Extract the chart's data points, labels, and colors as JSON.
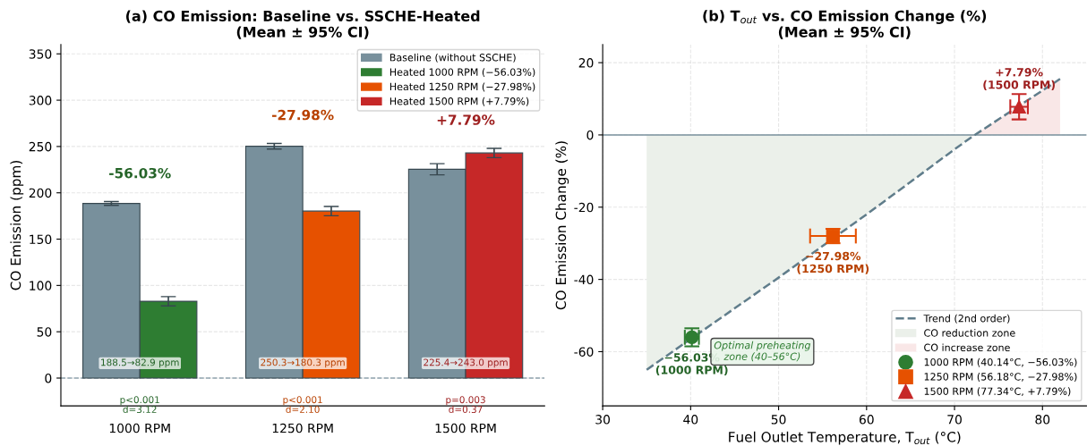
{
  "chart_data": [
    {
      "type": "bar",
      "title": "(a) CO Emission: Baseline vs. SSCHE-Heated\n(Mean ± 95% CI)",
      "ylabel": "CO Emission (ppm)",
      "categories": [
        "1000 RPM",
        "1250 RPM",
        "1500 RPM"
      ],
      "series": [
        {
          "name": "Baseline (without SSCHE)",
          "color": "#78909c",
          "values": [
            188.5,
            250.3,
            225.4
          ],
          "errors": [
            2,
            3,
            6
          ]
        },
        {
          "name": "Heated 1000 RPM (−56.03%)",
          "color": "#2e7d32",
          "values": [
            82.9,
            null,
            null
          ],
          "errors": [
            5,
            null,
            null
          ]
        },
        {
          "name": "Heated 1250 RPM (−27.98%)",
          "color": "#e65100",
          "values": [
            null,
            180.3,
            null
          ],
          "errors": [
            null,
            5,
            null
          ]
        },
        {
          "name": "Heated 1500 RPM (+7.79%)",
          "color": "#c62828",
          "values": [
            null,
            null,
            243.0
          ],
          "errors": [
            null,
            null,
            5
          ]
        }
      ],
      "ylim": [
        -30,
        360
      ],
      "yticks": [
        0,
        50,
        100,
        150,
        200,
        250,
        300,
        350
      ],
      "ref_lines": [
        {
          "axis": "y",
          "value": 0,
          "label": null,
          "color": "#90a4ae",
          "line_style": "dashed"
        }
      ],
      "annotations": [
        "-56.03%",
        "-27.98%",
        "+7.79%",
        "188.5→82.9 ppm",
        "250.3→180.3 ppm",
        "225.4→243.0 ppm",
        "p<0.001\nd=3.12",
        "p<0.001\nd=2.10",
        "p=0.003\nd=0.37"
      ],
      "grid": "y",
      "legend": "top right"
    },
    {
      "type": "scatter",
      "title": "(b) T$_{out}$ vs. CO Emission Change (%)\n(Mean ± 95% CI)",
      "xlabel": "Fuel Outlet Temperature, T$_{out}$ (°C)",
      "ylabel": "CO Emission Change (%)",
      "series": [
        {
          "name": "Trend (2nd order)",
          "type": "line",
          "color": "#607d8b",
          "line_style": "dashed",
          "marker": "none",
          "x": [
            35,
            40,
            50,
            60,
            70,
            72,
            82
          ],
          "values": [
            -65,
            -56.5,
            -39.5,
            -22,
            -4,
            -0.5,
            15.5
          ]
        },
        {
          "name": "CO reduction zone",
          "type": "area",
          "color": "#ebf0ea",
          "x": [
            35,
            40,
            50,
            60,
            70,
            72
          ],
          "values": [
            -65,
            -56.5,
            -39.5,
            -22,
            -4,
            -0.5
          ]
        },
        {
          "name": "CO increase zone",
          "type": "area",
          "color": "#f9e7e7",
          "x": [
            72,
            82
          ],
          "values": [
            -0.5,
            15.5
          ]
        },
        {
          "name": "1000 RPM (40.14°C, −56.03%)",
          "color": "#2e7d32",
          "marker": "circle",
          "x": [
            40.14
          ],
          "values": [
            -56.03
          ],
          "errors": [
            2.5
          ],
          "xerrors": [
            0.8
          ]
        },
        {
          "name": "1250 RPM (56.18°C, −27.98%)",
          "color": "#e65100",
          "marker": "square",
          "x": [
            56.18
          ],
          "values": [
            -27.98
          ],
          "errors": [
            2
          ],
          "xerrors": [
            2.6
          ]
        },
        {
          "name": "1500 RPM (77.34°C, +7.79%)",
          "color": "#c62828",
          "marker": "triangle",
          "x": [
            77.34
          ],
          "values": [
            7.79
          ],
          "errors": [
            3.5
          ],
          "xerrors": [
            1
          ]
        }
      ],
      "xlim": [
        30,
        85
      ],
      "xticks": [
        30,
        40,
        50,
        60,
        70,
        80
      ],
      "ylim": [
        -75,
        25
      ],
      "yticks": [
        -60,
        -40,
        -20,
        0,
        20
      ],
      "ref_lines": [
        {
          "axis": "y",
          "value": 0,
          "label": null,
          "color": "#78909c",
          "line_style": "solid"
        }
      ],
      "annotations": [
        {
          "text": "−56.03%\n(1000 RPM)",
          "x": 40.14,
          "y": -56.03
        },
        {
          "text": "−27.98%\n(1250 RPM)",
          "x": 56.18,
          "y": -27.98
        },
        {
          "text": "+7.79%\n(1500 RPM)",
          "x": 77.34,
          "y": 7.79
        },
        "Optimal preheating\nzone (40–56°C)"
      ],
      "grid": true,
      "legend": "bottom right"
    }
  ]
}
